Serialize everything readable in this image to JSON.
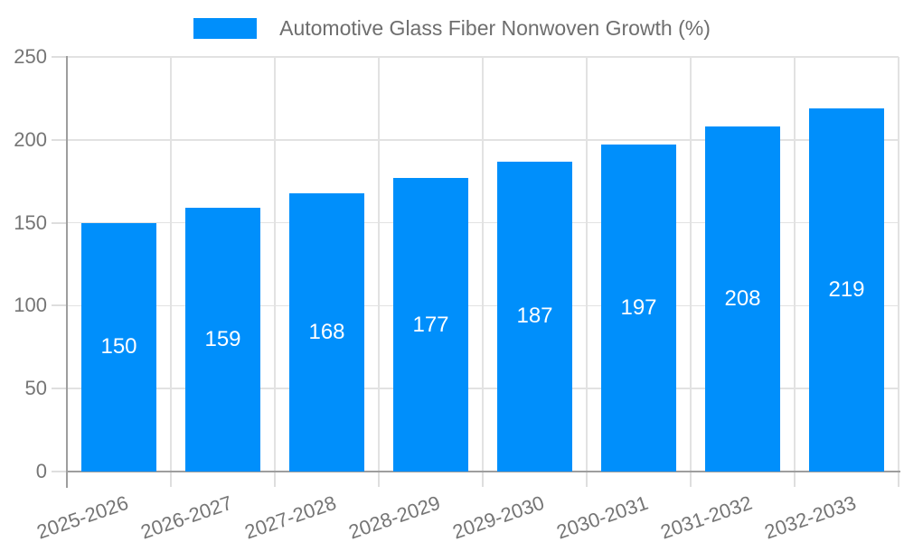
{
  "chart_data": {
    "type": "bar",
    "title": "",
    "categories": [
      "2025-2026",
      "2026-2027",
      "2027-2028",
      "2028-2029",
      "2029-2030",
      "2030-2031",
      "2031-2032",
      "2032-2033"
    ],
    "series": [
      {
        "name": "Automotive Glass Fiber Nonwoven Growth (%)",
        "values": [
          150,
          159,
          168,
          177,
          187,
          197,
          208,
          219
        ]
      }
    ],
    "xlabel": "",
    "ylabel": "",
    "ylim": [
      0,
      250
    ],
    "yticks": [
      0,
      50,
      100,
      150,
      200,
      250
    ],
    "grid": "both",
    "legend_position": "top",
    "bar_value_labels": true,
    "x_label_rotation_deg": -19
  },
  "colors": {
    "bar": "#008FFB",
    "axis_line": "#9e9e9e",
    "gridline": "#e2e2e2",
    "tick": "#dedede",
    "axis_label": "#757575",
    "legend_text": "#6e6e6e",
    "bar_value_text": "#ffffff",
    "background": "#ffffff"
  }
}
